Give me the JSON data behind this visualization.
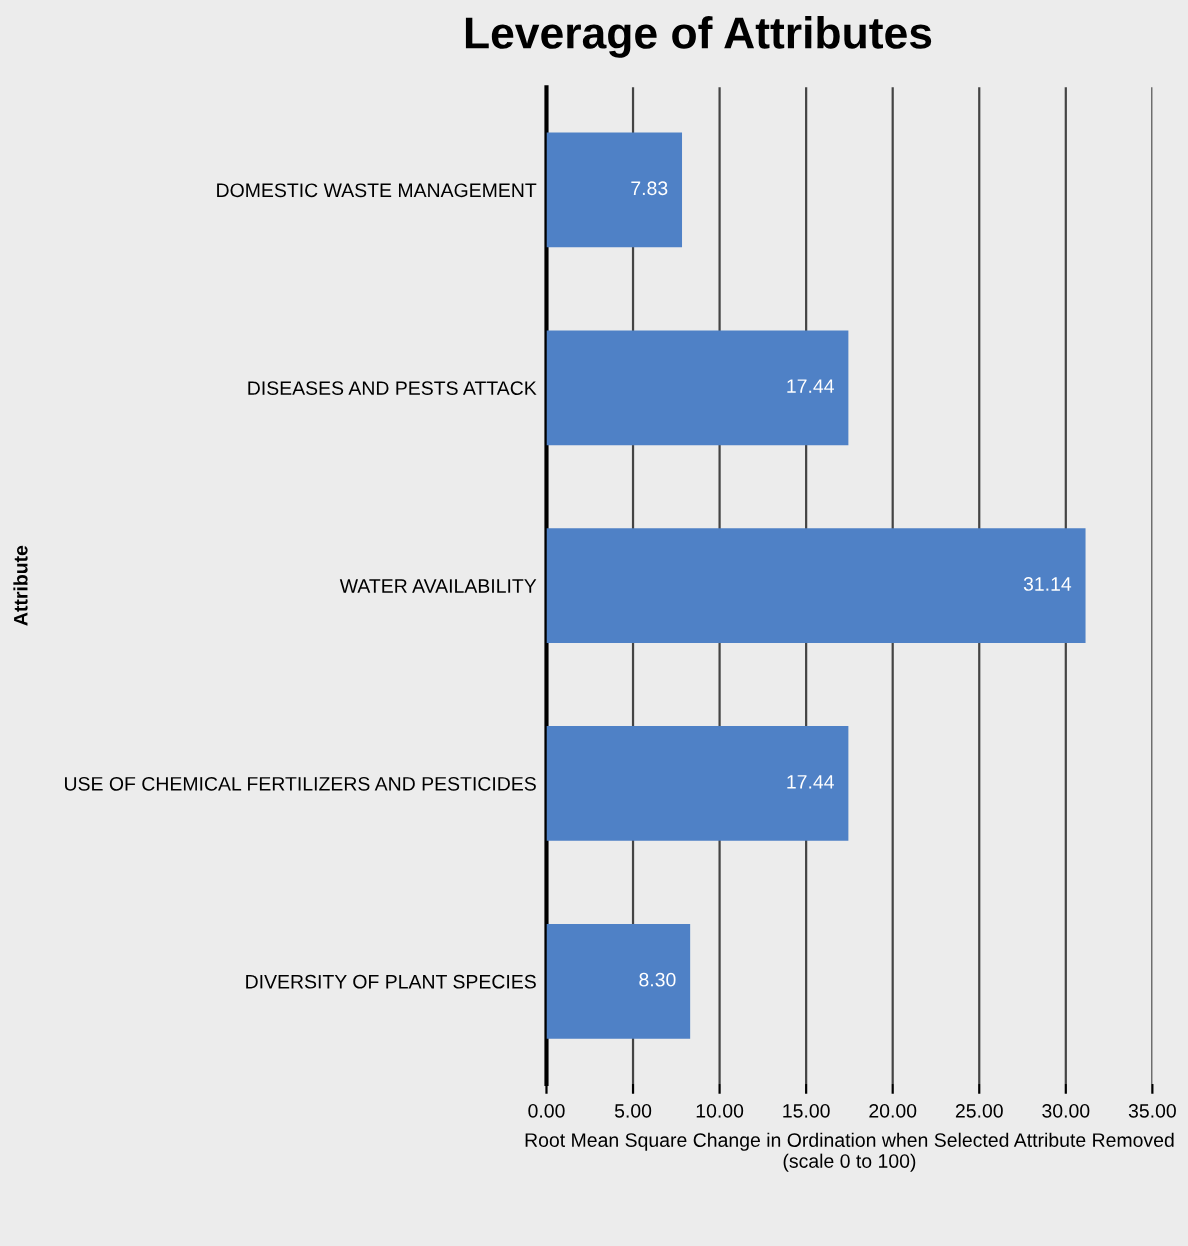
{
  "chart_data": {
    "type": "bar",
    "orientation": "horizontal",
    "title": "Leverage of Attributes",
    "categories": [
      "DOMESTIC WASTE MANAGEMENT",
      "DISEASES AND PESTS ATTACK",
      "WATER AVAILABILITY",
      "USE OF CHEMICAL FERTILIZERS AND PESTICIDES",
      "DIVERSITY OF PLANT SPECIES"
    ],
    "values": [
      7.83,
      17.44,
      31.14,
      17.44,
      8.3
    ],
    "value_labels": [
      "7.83",
      "17.44",
      "31.14",
      "17.44",
      "8.30"
    ],
    "color": "#4f81c6",
    "xlabel": "Root Mean Square Change in Ordination when Selected Attribute Removed\n(scale 0 to 100)",
    "ylabel": "Attribute",
    "xlim": [
      0,
      35
    ],
    "xticks": [
      {
        "value": 0,
        "label": "0.00"
      },
      {
        "value": 5,
        "label": "5.00"
      },
      {
        "value": 10,
        "label": "10.00"
      },
      {
        "value": 15,
        "label": "15.00"
      },
      {
        "value": 20,
        "label": "20.00"
      },
      {
        "value": 25,
        "label": "25.00"
      },
      {
        "value": 30,
        "label": "30.00"
      },
      {
        "value": 35,
        "label": "35.00"
      }
    ],
    "grid": "x"
  }
}
